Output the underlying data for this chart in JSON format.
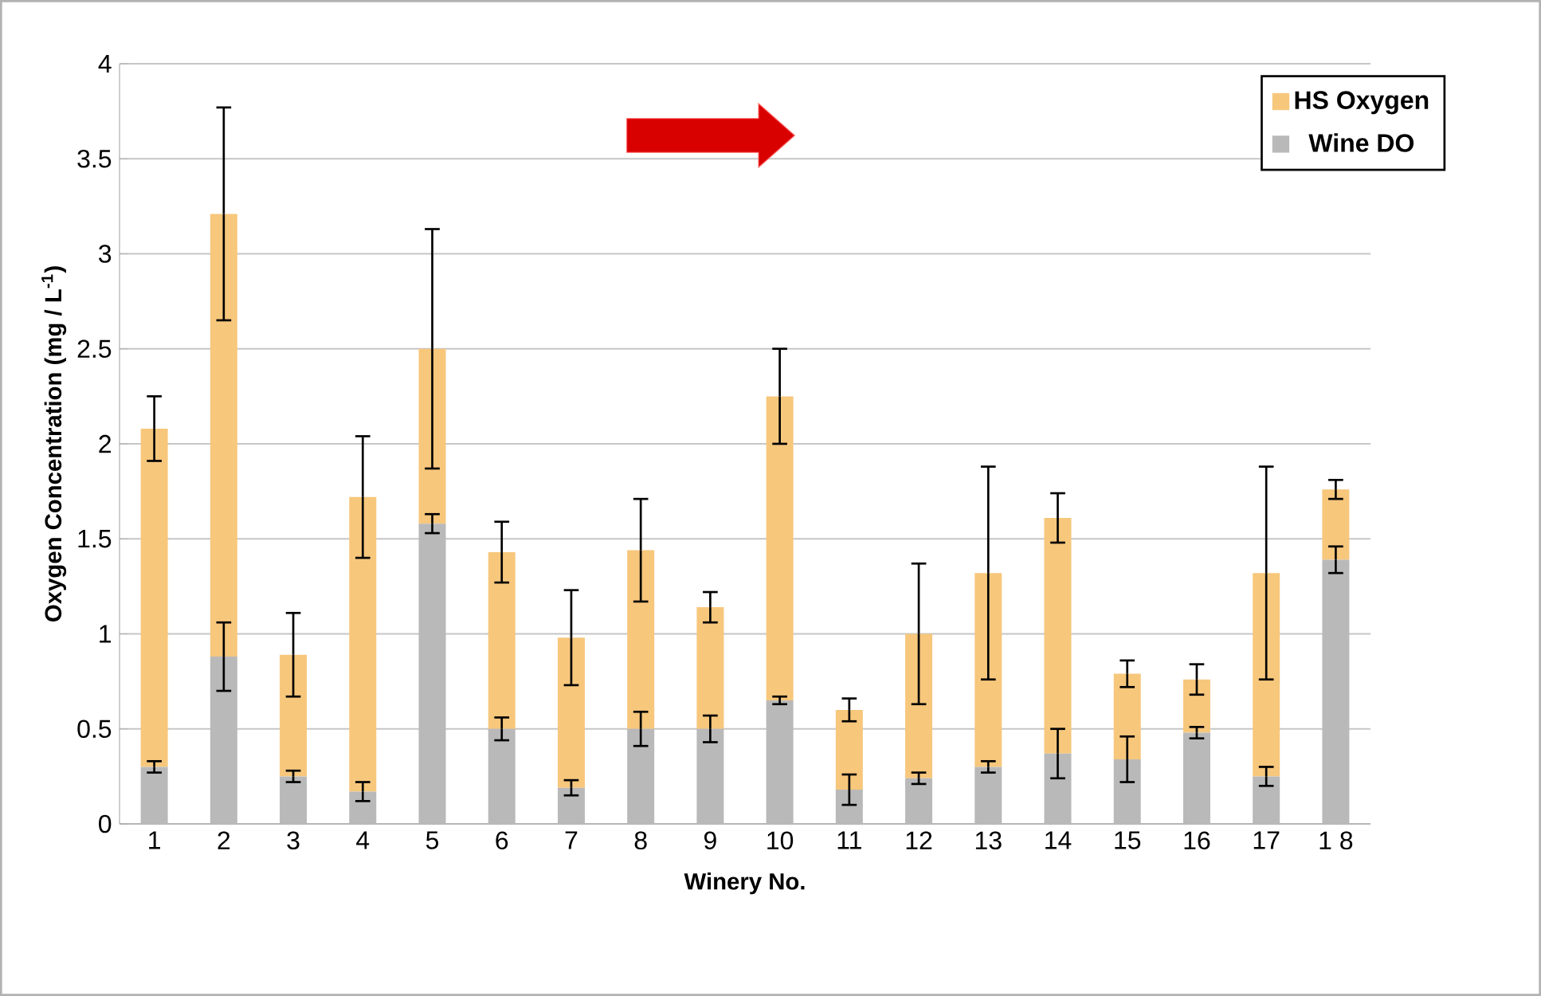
{
  "chart_data": {
    "type": "bar",
    "stacked": true,
    "xlabel": "Winery No.",
    "ylabel": "Oxygen Concentration (mg / L$^{-1}$)",
    "categories": [
      "1",
      "2",
      "3",
      "4",
      "5",
      "6",
      "7",
      "8",
      "9",
      "10",
      "11",
      "12",
      "13",
      "14",
      "15",
      "16",
      "17",
      "1 8"
    ],
    "series": [
      {
        "name": "Wine DO",
        "color": "#b9b9b9",
        "values": [
          0.3,
          0.88,
          0.25,
          0.17,
          1.58,
          0.5,
          0.19,
          0.5,
          0.5,
          0.65,
          0.18,
          0.24,
          0.3,
          0.37,
          0.34,
          0.48,
          0.25,
          1.39
        ],
        "errors": [
          0.03,
          0.18,
          0.03,
          0.05,
          0.05,
          0.06,
          0.04,
          0.09,
          0.07,
          0.02,
          0.08,
          0.03,
          0.03,
          0.13,
          0.12,
          0.03,
          0.05,
          0.07
        ]
      },
      {
        "name": "HS Oxygen",
        "color": "#f7c77c",
        "values": [
          1.78,
          2.33,
          0.64,
          1.55,
          0.92,
          0.93,
          0.79,
          0.94,
          0.64,
          1.6,
          0.42,
          0.76,
          1.02,
          1.24,
          0.45,
          0.28,
          1.07,
          0.37
        ],
        "errors": [
          0.17,
          0.56,
          0.22,
          0.32,
          0.63,
          0.16,
          0.25,
          0.27,
          0.08,
          0.25,
          0.06,
          0.37,
          0.56,
          0.13,
          0.07,
          0.08,
          0.56,
          0.05
        ]
      }
    ],
    "ylim": [
      0,
      4
    ],
    "yticks": [
      0,
      0.5,
      1,
      1.5,
      2,
      2.5,
      3,
      3.5,
      4
    ],
    "grid": "y",
    "legend": "top right"
  }
}
